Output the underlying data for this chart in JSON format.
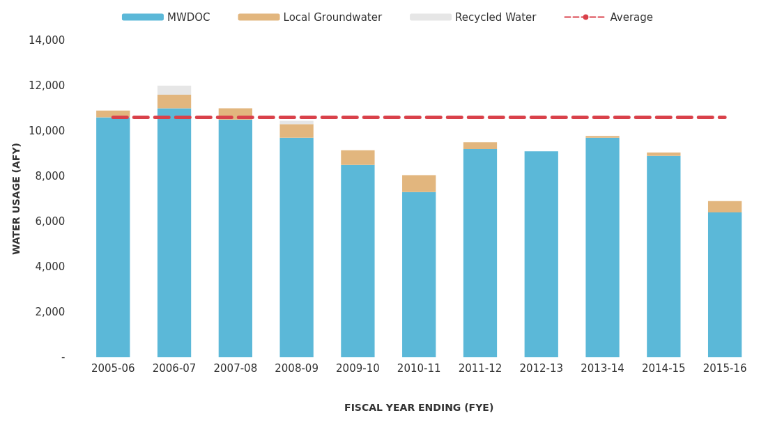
{
  "chart_data": {
    "type": "bar",
    "stacked": true,
    "xlabel": "FISCAL YEAR ENDING (FYE)",
    "ylabel": "WATER USAGE (AFY)",
    "categories": [
      "2005-06",
      "2006-07",
      "2007-08",
      "2008-09",
      "2009-10",
      "2010-11",
      "2011-12",
      "2012-13",
      "2013-14",
      "2014-15",
      "2015-16"
    ],
    "series": [
      {
        "name": "MWDOC",
        "color": "#5bb8d8",
        "values": [
          10600,
          11000,
          10500,
          9700,
          8500,
          7300,
          9200,
          9100,
          9700,
          8900,
          6400
        ]
      },
      {
        "name": "Local Groundwater",
        "color": "#e2b67e",
        "values": [
          300,
          600,
          500,
          600,
          650,
          750,
          300,
          null,
          80,
          150,
          500
        ]
      },
      {
        "name": "Recycled Water",
        "color": "#e6e6e6",
        "values": [
          null,
          400,
          null,
          150,
          null,
          null,
          null,
          null,
          null,
          null,
          null
        ]
      },
      {
        "name": "Average",
        "type": "line",
        "color": "#d9414a",
        "line_style": "dashed",
        "marker": "none",
        "values": [
          10600,
          10600,
          10600,
          10600,
          10600,
          10600,
          10600,
          10600,
          10600,
          10600,
          10600
        ]
      }
    ],
    "ylim": [
      0,
      14000
    ],
    "yticks": [
      {
        "value": 0,
        "label": "-"
      },
      {
        "value": 2000,
        "label": "2,000"
      },
      {
        "value": 4000,
        "label": "4,000"
      },
      {
        "value": 6000,
        "label": "6,000"
      },
      {
        "value": 8000,
        "label": "8,000"
      },
      {
        "value": 10000,
        "label": "10,000"
      },
      {
        "value": 12000,
        "label": "12,000"
      },
      {
        "value": 14000,
        "label": "14,000"
      }
    ],
    "grid": false,
    "legend": "top"
  }
}
